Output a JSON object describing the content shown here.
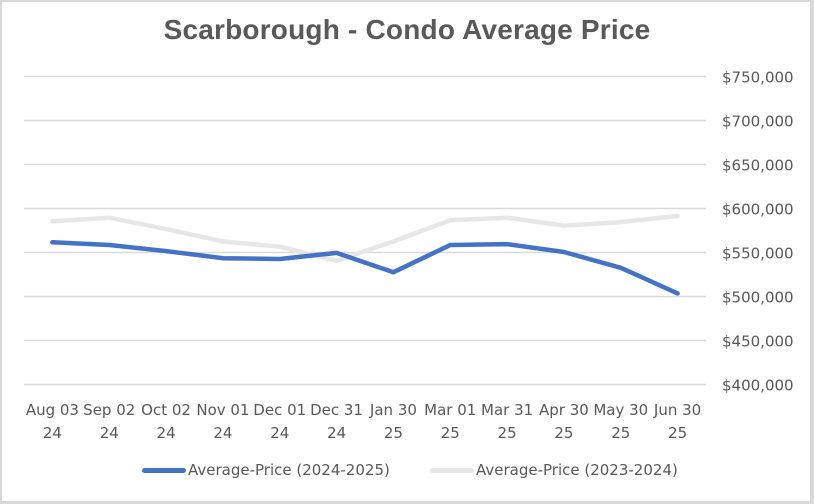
{
  "chart_data": {
    "type": "line",
    "title": "Scarborough - Condo Average Price",
    "xlabel": "",
    "ylabel": "",
    "categories": [
      [
        "Aug 03",
        "24"
      ],
      [
        "Sep 02",
        "24"
      ],
      [
        "Oct 02",
        "24"
      ],
      [
        "Nov 01",
        "24"
      ],
      [
        "Dec 01",
        "24"
      ],
      [
        "Dec 31",
        "24"
      ],
      [
        "Jan 30",
        "25"
      ],
      [
        "Mar 01",
        "25"
      ],
      [
        "Mar 31",
        "25"
      ],
      [
        "Apr 30",
        "25"
      ],
      [
        "May 30",
        "25"
      ],
      [
        "Jun 30",
        "25"
      ]
    ],
    "ylim": [
      400000,
      750000
    ],
    "y_ticks": [
      750000,
      700000,
      650000,
      600000,
      550000,
      500000,
      450000,
      400000
    ],
    "y_tick_labels": [
      "$750,000",
      "$700,000",
      "$650,000",
      "$600,000",
      "$550,000",
      "$500,000",
      "$450,000",
      "$400,000"
    ],
    "y_axis_side": "right",
    "grid": true,
    "legend_position": "bottom",
    "series": [
      {
        "name": "Average-Price (2024-2025)",
        "color": "#4472c4",
        "values": [
          561000,
          558000,
          551000,
          543000,
          542000,
          549000,
          527000,
          558000,
          559000,
          550000,
          532000,
          503000
        ]
      },
      {
        "name": "Average-Price (2023-2024)",
        "color": "#e7e6e6",
        "values": [
          585000,
          589000,
          576000,
          562000,
          556000,
          540000,
          562000,
          586000,
          589000,
          580000,
          584000,
          591000
        ]
      }
    ]
  }
}
